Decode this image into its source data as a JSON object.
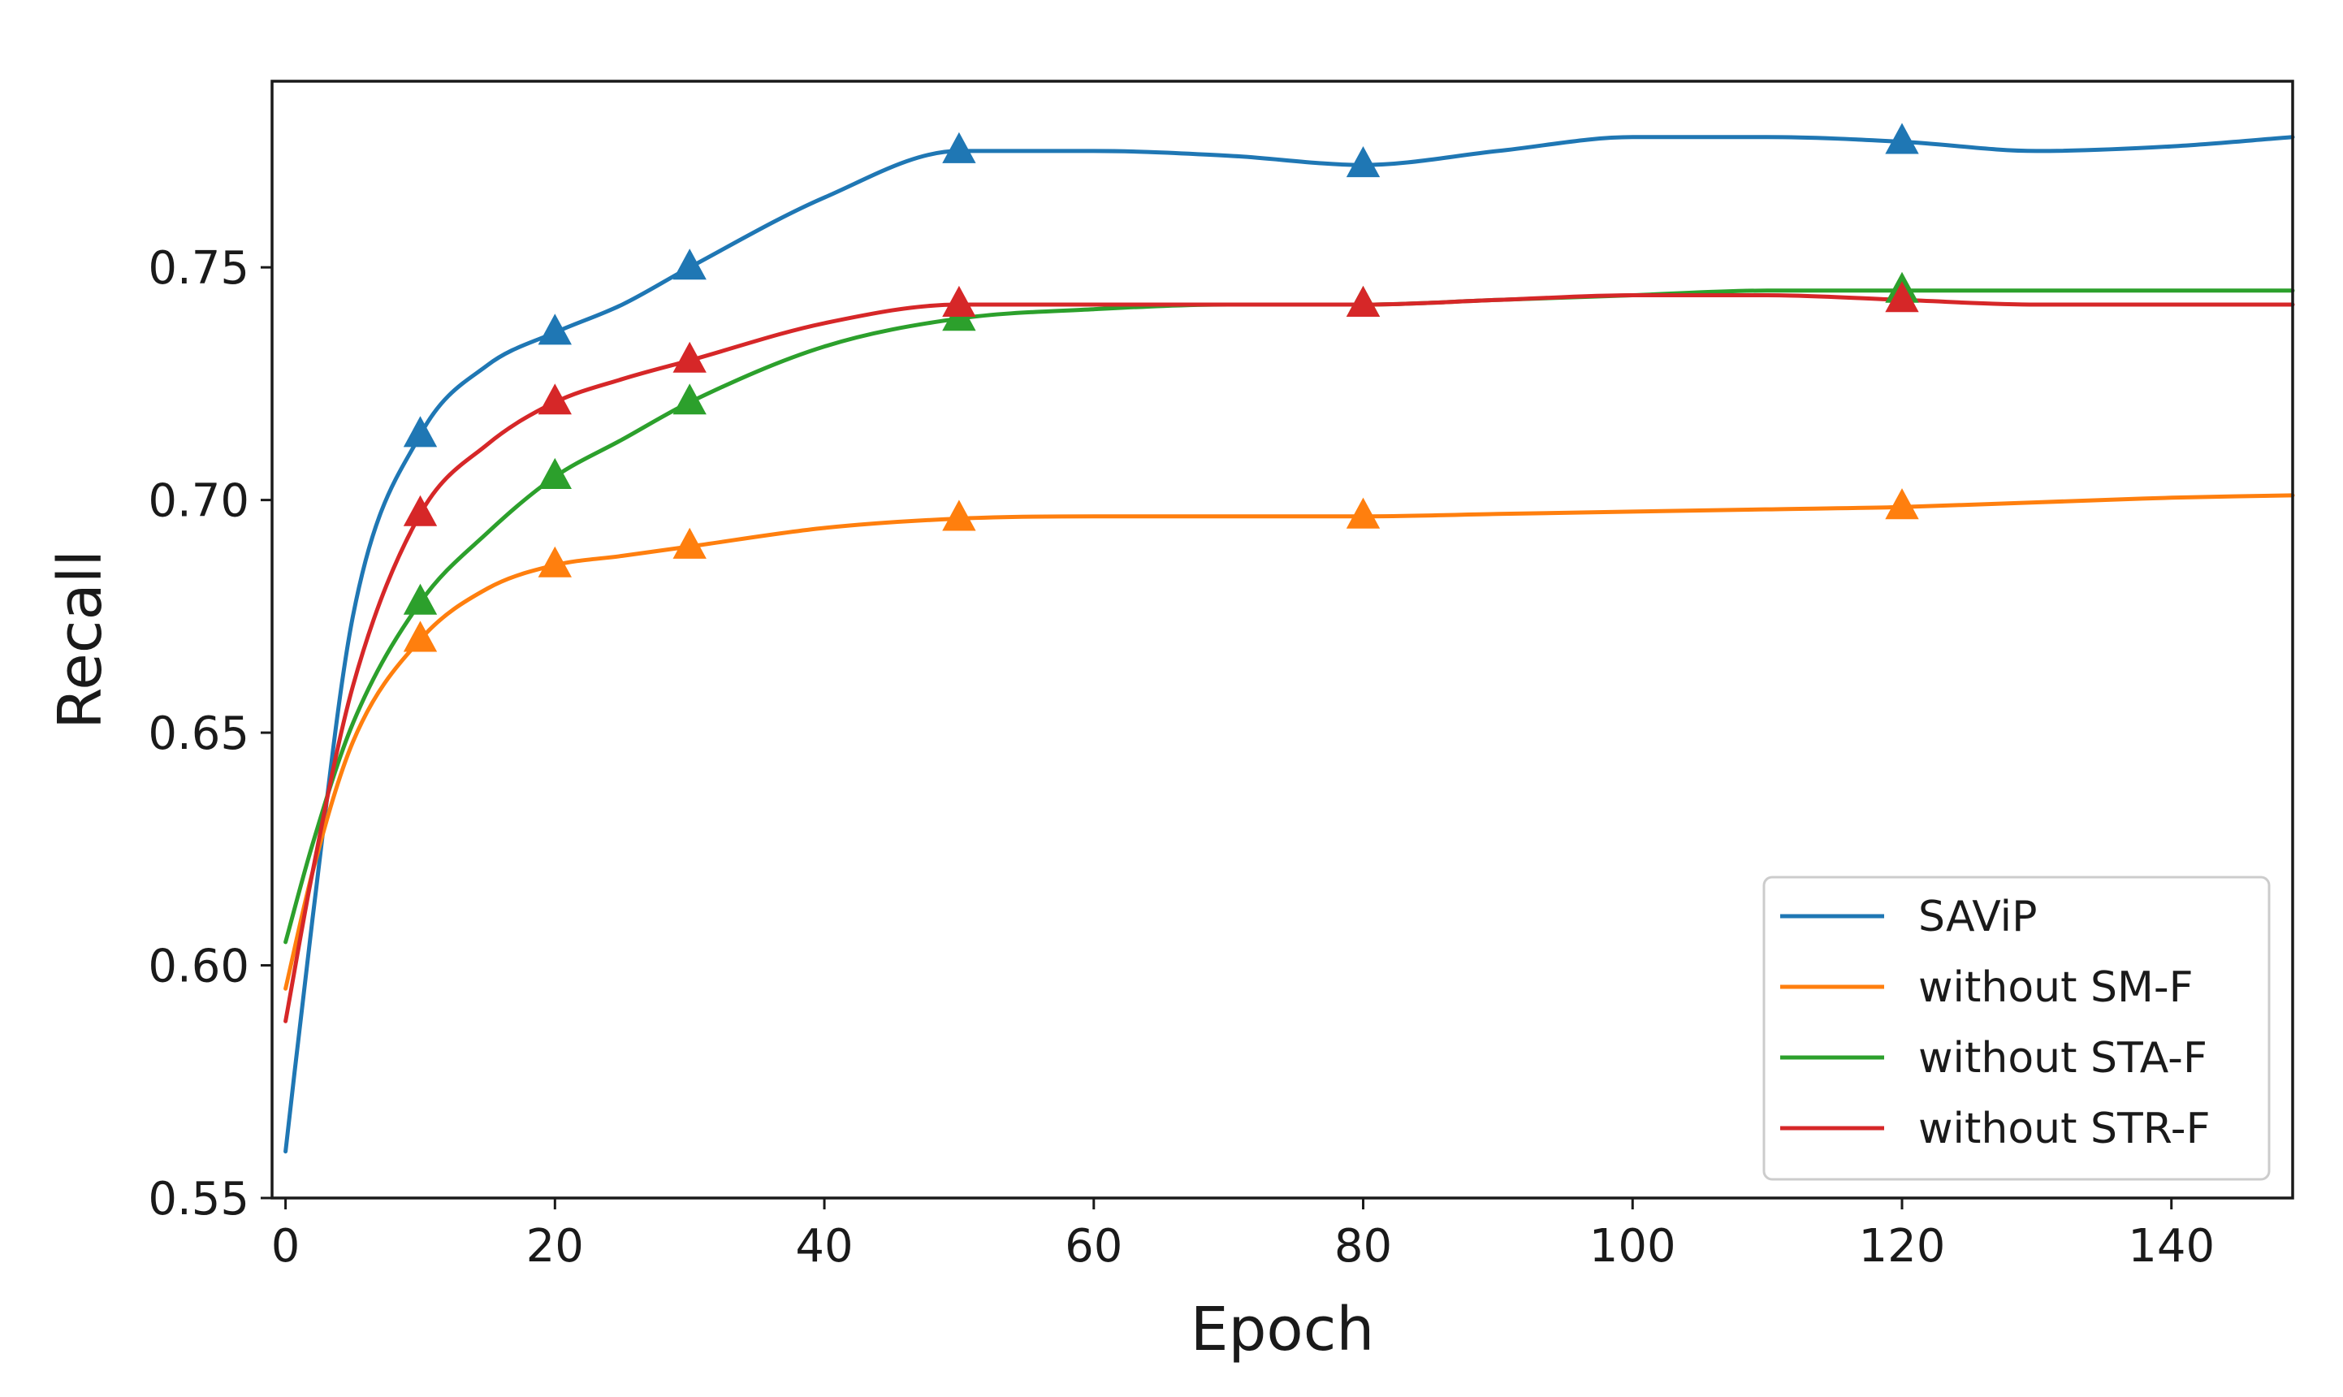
{
  "chart_data": {
    "type": "line",
    "title": "",
    "xlabel": "Epoch",
    "ylabel": "Recall",
    "xlim": [
      -1,
      149
    ],
    "ylim": [
      0.55,
      0.79
    ],
    "xticks": [
      0,
      20,
      40,
      60,
      80,
      100,
      120,
      140
    ],
    "yticks": [
      0.55,
      0.6,
      0.65,
      0.7,
      0.75
    ],
    "ytick_labels": [
      "0.55",
      "0.60",
      "0.65",
      "0.70",
      "0.75"
    ],
    "grid": false,
    "legend_position": "lower-right",
    "marker": "triangle-up",
    "marker_x": [
      10,
      20,
      30,
      50,
      80,
      120
    ],
    "series": [
      {
        "name": "SAViP",
        "color": "#1f77b4",
        "x": [
          0,
          2,
          5,
          10,
          15,
          20,
          25,
          30,
          40,
          50,
          60,
          70,
          80,
          90,
          100,
          110,
          120,
          130,
          140,
          149
        ],
        "y": [
          0.56,
          0.61,
          0.675,
          0.714,
          0.729,
          0.736,
          0.742,
          0.75,
          0.765,
          0.775,
          0.775,
          0.774,
          0.772,
          0.775,
          0.778,
          0.778,
          0.777,
          0.775,
          0.776,
          0.778
        ]
      },
      {
        "name": "without SM-F",
        "color": "#ff7f0e",
        "x": [
          0,
          2,
          5,
          10,
          15,
          20,
          25,
          30,
          40,
          50,
          60,
          70,
          80,
          90,
          100,
          110,
          120,
          130,
          140,
          149
        ],
        "y": [
          0.595,
          0.62,
          0.648,
          0.67,
          0.681,
          0.686,
          0.688,
          0.69,
          0.694,
          0.696,
          0.6965,
          0.6965,
          0.6965,
          0.697,
          0.6975,
          0.698,
          0.6985,
          0.6995,
          0.7005,
          0.701
        ]
      },
      {
        "name": "without STA-F",
        "color": "#2ca02c",
        "x": [
          0,
          2,
          5,
          10,
          15,
          20,
          25,
          30,
          40,
          50,
          60,
          70,
          80,
          90,
          100,
          110,
          120,
          130,
          140,
          149
        ],
        "y": [
          0.605,
          0.626,
          0.652,
          0.678,
          0.693,
          0.705,
          0.713,
          0.721,
          0.733,
          0.739,
          0.741,
          0.742,
          0.742,
          0.743,
          0.744,
          0.745,
          0.745,
          0.745,
          0.745,
          0.745
        ]
      },
      {
        "name": "without STR-F",
        "color": "#d62728",
        "x": [
          0,
          2,
          5,
          10,
          15,
          20,
          25,
          30,
          40,
          50,
          60,
          70,
          80,
          90,
          100,
          110,
          120,
          130,
          140,
          149
        ],
        "y": [
          0.588,
          0.62,
          0.66,
          0.697,
          0.712,
          0.721,
          0.726,
          0.73,
          0.738,
          0.742,
          0.742,
          0.742,
          0.742,
          0.743,
          0.744,
          0.744,
          0.743,
          0.742,
          0.742,
          0.742
        ]
      }
    ]
  }
}
